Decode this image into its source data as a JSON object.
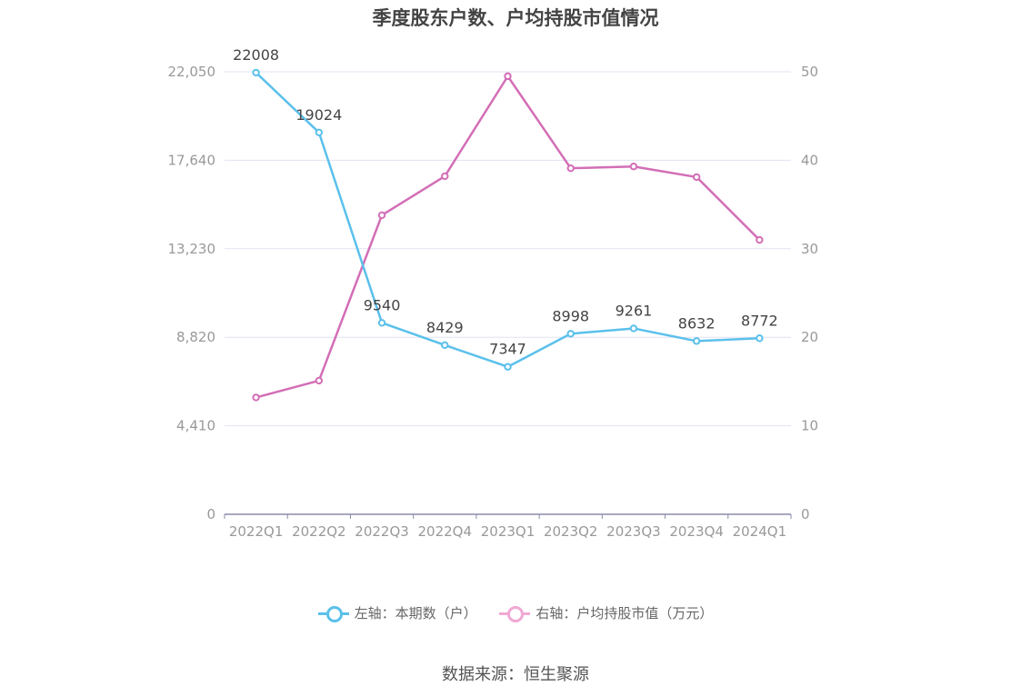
{
  "title": "季度股东户数、户均持股市值情况",
  "source": "数据来源：恒生聚源",
  "colors": {
    "left_series": "#5bc0eb",
    "right_series": "#d36eb6",
    "legend_right_marker": "#f0a8d4"
  },
  "chart_data": {
    "type": "line",
    "title": "季度股东户数、户均持股市值情况",
    "categories": [
      "2022Q1",
      "2022Q2",
      "2022Q3",
      "2022Q4",
      "2023Q1",
      "2023Q2",
      "2023Q3",
      "2023Q4",
      "2024Q1"
    ],
    "y_left": {
      "ylim": [
        0,
        22050
      ],
      "ticks": [
        "0",
        "4,410",
        "8,820",
        "13,230",
        "17,640",
        "22,050"
      ]
    },
    "y_right": {
      "ylim": [
        0,
        50
      ],
      "ticks": [
        "0",
        "10",
        "20",
        "30",
        "40",
        "50"
      ]
    },
    "grid": true,
    "legend_position": "bottom",
    "series": [
      {
        "name": "左轴：本期数（户）",
        "axis": "left",
        "values": [
          22008,
          19024,
          9540,
          8429,
          7347,
          8998,
          9261,
          8632,
          8772
        ],
        "labels": [
          "22008",
          "19024",
          "9540",
          "8429",
          "7347",
          "8998",
          "9261",
          "8632",
          "8772"
        ]
      },
      {
        "name": "右轴：户均持股市值（万元）",
        "axis": "right",
        "values": [
          13.2,
          15.1,
          33.8,
          38.2,
          49.5,
          39.1,
          39.3,
          38.1,
          31.0
        ]
      }
    ]
  }
}
